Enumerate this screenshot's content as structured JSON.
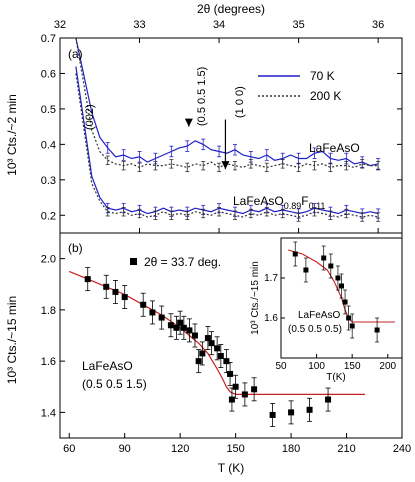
{
  "chart_data": [
    {
      "panel_label": "(a)",
      "type": "line",
      "title": "",
      "xlabel": "2θ (degrees)",
      "ylabel": "10³ Cts./~2 min",
      "xlim": [
        32,
        36.3
      ],
      "ylim": [
        0.15,
        0.7
      ],
      "x_ticks": [
        "32",
        "33",
        "34",
        "35",
        "36"
      ],
      "y_ticks": [
        "0.2",
        "0.3",
        "0.4",
        "0.5",
        "0.6",
        "0.7"
      ],
      "legend": {
        "placement": "top-right",
        "entries": [
          {
            "label": "70 K",
            "color": "#2020c8",
            "style": "solid"
          },
          {
            "label": "200 K",
            "color": "#303030",
            "style": "dotted"
          }
        ]
      },
      "annotations": [
        {
          "text": "(002)",
          "x": 31.9,
          "y": 0.46
        },
        {
          "text": "(0.5 0.5 1.5)",
          "x": 33.62,
          "y": 0.46,
          "arrow_to_y": 0.45
        },
        {
          "text": "(1 0 0)",
          "x": 34.08,
          "y": 0.46,
          "arrow_to_y": 0.33
        },
        {
          "text": "LaFeAsO",
          "x": 35.08,
          "y": 0.385
        },
        {
          "text": "LaFeAsO",
          "sub1": "0.89",
          "mid": "F",
          "sub2": "0.11",
          "x": 34.8,
          "y": 0.23
        }
      ],
      "series": [
        {
          "name": "70 K",
          "color": "#2020c8",
          "dash": "",
          "x": [
            32.2,
            32.4,
            32.5,
            32.6,
            32.7,
            32.8,
            32.9,
            33.0,
            33.1,
            33.2,
            33.3,
            33.4,
            33.5,
            33.6,
            33.7,
            33.8,
            33.9,
            34.0,
            34.1,
            34.2,
            34.3,
            34.4,
            34.5,
            34.6,
            34.7,
            34.8,
            34.9,
            35.0,
            35.1,
            35.2,
            35.3,
            35.4,
            35.5,
            35.6,
            35.7,
            35.8,
            35.9,
            36.0
          ],
          "y": [
            0.7,
            0.49,
            0.42,
            0.39,
            0.365,
            0.37,
            0.36,
            0.365,
            0.35,
            0.36,
            0.37,
            0.38,
            0.39,
            0.395,
            0.41,
            0.4,
            0.385,
            0.38,
            0.375,
            0.385,
            0.37,
            0.365,
            0.36,
            0.37,
            0.355,
            0.36,
            0.37,
            0.36,
            0.36,
            0.375,
            0.38,
            0.36,
            0.355,
            0.36,
            0.345,
            0.35,
            0.34,
            0.345
          ],
          "err": 0.015
        },
        {
          "name": "200 K",
          "color": "#303030",
          "dash": "2,2",
          "x": [
            32.2,
            32.4,
            32.5,
            32.6,
            32.7,
            32.8,
            32.9,
            33.0,
            33.1,
            33.2,
            33.3,
            33.4,
            33.5,
            33.6,
            33.7,
            33.8,
            33.9,
            34.0,
            34.1,
            34.2,
            34.3,
            34.4,
            34.5,
            34.6,
            34.7,
            34.8,
            34.9,
            35.0,
            35.1,
            35.2,
            35.3,
            35.4,
            35.5,
            35.6,
            35.7,
            35.8,
            35.9,
            36.0
          ],
          "y": [
            0.7,
            0.44,
            0.38,
            0.355,
            0.345,
            0.34,
            0.345,
            0.335,
            0.345,
            0.34,
            0.34,
            0.345,
            0.34,
            0.335,
            0.345,
            0.34,
            0.35,
            0.335,
            0.345,
            0.34,
            0.335,
            0.345,
            0.34,
            0.335,
            0.34,
            0.345,
            0.34,
            0.335,
            0.345,
            0.34,
            0.345,
            0.335,
            0.34,
            0.34,
            0.335,
            0.345,
            0.34,
            0.34
          ],
          "err": 0.012
        },
        {
          "name": "70 K",
          "color": "#2020c8",
          "dash": "",
          "x": [
            32.2,
            32.4,
            32.5,
            32.6,
            32.7,
            32.8,
            32.9,
            33.0,
            33.1,
            33.2,
            33.3,
            33.4,
            33.5,
            33.6,
            33.7,
            33.8,
            33.9,
            34.0,
            34.1,
            34.2,
            34.3,
            34.4,
            34.5,
            34.6,
            34.7,
            34.8,
            34.9,
            35.0,
            35.1,
            35.2,
            35.3,
            35.4,
            35.5,
            35.6,
            35.7,
            35.8,
            35.9,
            36.0
          ],
          "y": [
            0.62,
            0.31,
            0.25,
            0.22,
            0.215,
            0.22,
            0.21,
            0.215,
            0.205,
            0.21,
            0.22,
            0.21,
            0.215,
            0.21,
            0.22,
            0.215,
            0.21,
            0.22,
            0.215,
            0.21,
            0.205,
            0.215,
            0.21,
            0.22,
            0.21,
            0.215,
            0.21,
            0.205,
            0.21,
            0.22,
            0.215,
            0.21,
            0.205,
            0.215,
            0.21,
            0.205,
            0.21,
            0.205
          ],
          "err": 0.013
        },
        {
          "name": "200 K",
          "color": "#303030",
          "dash": "2,2",
          "x": [
            32.2,
            32.4,
            32.5,
            32.6,
            32.7,
            32.8,
            32.9,
            33.0,
            33.1,
            33.2,
            33.3,
            33.4,
            33.5,
            33.6,
            33.7,
            33.8,
            33.9,
            34.0,
            34.1,
            34.2,
            34.3,
            34.4,
            34.5,
            34.6,
            34.7,
            34.8,
            34.9,
            35.0,
            35.1,
            35.2,
            35.3,
            35.4,
            35.5,
            35.6,
            35.7,
            35.8,
            35.9,
            36.0
          ],
          "y": [
            0.6,
            0.29,
            0.24,
            0.21,
            0.205,
            0.21,
            0.2,
            0.205,
            0.195,
            0.2,
            0.21,
            0.2,
            0.205,
            0.2,
            0.21,
            0.205,
            0.2,
            0.21,
            0.205,
            0.2,
            0.195,
            0.205,
            0.2,
            0.21,
            0.2,
            0.205,
            0.2,
            0.195,
            0.2,
            0.21,
            0.205,
            0.2,
            0.195,
            0.205,
            0.2,
            0.195,
            0.2,
            0.195
          ],
          "err": 0.012
        }
      ]
    },
    {
      "panel_label": "(b)",
      "type": "scatter",
      "title": "",
      "xlabel": "T (K)",
      "ylabel": "10³ Cts./~15 min",
      "xlim": [
        55,
        240
      ],
      "ylim": [
        1.3,
        2.1
      ],
      "x_ticks": [
        "60",
        "90",
        "120",
        "150",
        "180",
        "210",
        "240"
      ],
      "y_ticks": [
        "1.4",
        "1.6",
        "1.8",
        "2.0"
      ],
      "legend": {
        "placement": "top-center",
        "entries": [
          {
            "label": "2θ = 33.7 deg.",
            "marker": "square"
          }
        ]
      },
      "annotations": [
        {
          "text": "LaFeAsO",
          "x": 88,
          "y": 1.61
        },
        {
          "text": "(0.5 0.5 1.5)",
          "x": 88,
          "y": 1.545
        }
      ],
      "points": {
        "x": [
          70,
          80,
          85,
          90,
          100,
          105,
          110,
          115,
          118,
          120,
          122,
          125,
          128,
          130,
          132,
          135,
          137,
          140,
          142,
          145,
          147,
          148,
          150,
          155,
          160,
          170,
          180,
          190,
          200
        ],
        "y": [
          1.92,
          1.89,
          1.87,
          1.85,
          1.82,
          1.79,
          1.77,
          1.74,
          1.73,
          1.75,
          1.73,
          1.72,
          1.7,
          1.6,
          1.63,
          1.69,
          1.67,
          1.65,
          1.62,
          1.6,
          1.55,
          1.45,
          1.5,
          1.47,
          1.49,
          1.39,
          1.4,
          1.41,
          1.45
        ],
        "err": 0.045
      },
      "fit": {
        "color": "#c82020",
        "x": [
          60,
          70,
          80,
          90,
          100,
          110,
          120,
          125,
          130,
          135,
          140,
          143,
          145,
          147,
          150,
          220
        ],
        "y": [
          1.95,
          1.92,
          1.89,
          1.86,
          1.82,
          1.78,
          1.73,
          1.7,
          1.67,
          1.63,
          1.57,
          1.53,
          1.5,
          1.48,
          1.47,
          1.47
        ]
      }
    },
    {
      "panel_label": "inset",
      "type": "scatter",
      "title": "",
      "xlabel": "T(K)",
      "ylabel": "10³ Cts./~15 min",
      "xlim": [
        50,
        220
      ],
      "ylim": [
        1.5,
        1.8
      ],
      "x_ticks": [
        "50",
        "100",
        "150",
        "200"
      ],
      "y_ticks": [
        "1.6",
        "1.7"
      ],
      "annotations": [
        {
          "text": "LaFeAsO",
          "x": 55,
          "y": 1.575
        },
        {
          "text": "(0.5 0.5 0.5)",
          "x": 55,
          "y": 1.545
        }
      ],
      "points": {
        "x": [
          70,
          85,
          110,
          120,
          130,
          135,
          140,
          145,
          150,
          185
        ],
        "y": [
          1.76,
          1.72,
          1.75,
          1.73,
          1.7,
          1.68,
          1.64,
          1.6,
          1.58,
          1.57
        ],
        "err": 0.03
      },
      "fit": {
        "color": "#c82020",
        "x": [
          60,
          80,
          100,
          115,
          125,
          135,
          140,
          145,
          150,
          210
        ],
        "y": [
          1.77,
          1.76,
          1.74,
          1.72,
          1.69,
          1.65,
          1.62,
          1.6,
          1.59,
          1.59
        ]
      }
    }
  ]
}
